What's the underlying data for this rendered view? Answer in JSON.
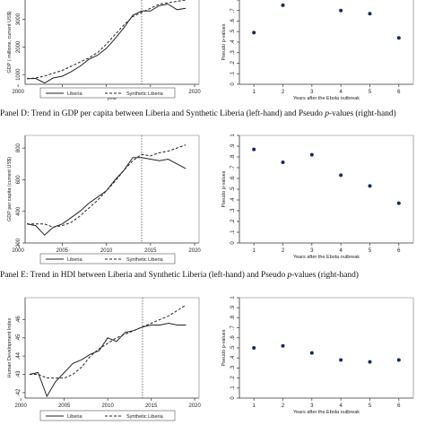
{
  "captions": [
    {
      "prefix": "Panel D: Trend in GDP per capita between Liberia and Synthetic Liberia (left-hand) and Pseudo ",
      "italic": "p",
      "suffix": "-values (right-hand)"
    },
    {
      "prefix": "Panel E: Trend in HDI between Liberia and Synthetic Liberia (left-hand) and Pseudo ",
      "italic": "p",
      "suffix": "-values (right-hand)"
    }
  ],
  "chart_data": [
    {
      "id": "gdp-trend",
      "type": "line",
      "title": "",
      "xlabel": "year",
      "ylabel": "GDP ( millions, current US$)",
      "xlim": [
        2000.8,
        2020.5
      ],
      "ylim": [
        650,
        3700
      ],
      "xticks": [
        2000,
        2005,
        2010,
        2015,
        2020
      ],
      "yticks": [
        1000,
        2000,
        3000
      ],
      "grid": false,
      "vline": 2014,
      "legend": {
        "position": "bottom",
        "entries": [
          "Liberia",
          "Synthetic Liberia"
        ]
      },
      "series": [
        {
          "name": "Liberia",
          "style": "solid",
          "x": [
            2001,
            2002,
            2003,
            2004,
            2005,
            2006,
            2007,
            2008,
            2009,
            2010,
            2011,
            2012,
            2013,
            2014,
            2015,
            2016,
            2017,
            2018,
            2019
          ],
          "y": [
            850,
            860,
            700,
            880,
            940,
            1100,
            1300,
            1550,
            1700,
            1950,
            2300,
            2700,
            3150,
            3300,
            3300,
            3500,
            3550,
            3350,
            3400
          ]
        },
        {
          "name": "Synthetic Liberia",
          "style": "dashed",
          "x": [
            2001,
            2002,
            2003,
            2004,
            2005,
            2006,
            2007,
            2008,
            2009,
            2010,
            2011,
            2012,
            2013,
            2014,
            2015,
            2016,
            2017,
            2018,
            2019
          ],
          "y": [
            850,
            880,
            950,
            1050,
            1150,
            1300,
            1450,
            1600,
            1800,
            2100,
            2450,
            2800,
            3100,
            3250,
            3400,
            3550,
            3600,
            3650,
            3700
          ]
        }
      ]
    },
    {
      "id": "gdp-pvalues",
      "type": "scatter",
      "title": "",
      "xlabel": "Years after the Ebola outbreak",
      "ylabel": "Pseudo p-values",
      "xlim": [
        0.5,
        6.5
      ],
      "ylim": [
        0,
        0.8
      ],
      "xticks": [
        1,
        2,
        3,
        4,
        5,
        6
      ],
      "yticks": [
        0,
        0.1,
        0.2,
        0.3,
        0.4,
        0.5,
        0.6,
        0.7,
        0.8
      ],
      "yticklabels": [
        "0",
        ".1",
        ".2",
        ".3",
        ".4",
        ".5",
        ".6",
        ".7",
        ".8"
      ],
      "grid": false,
      "series": [
        {
          "x": [
            1,
            2,
            4,
            5,
            6
          ],
          "y": [
            0.49,
            0.75,
            0.7,
            0.67,
            0.44
          ]
        }
      ]
    },
    {
      "id": "gdppc-trend",
      "type": "line",
      "title": "",
      "xlabel": "year",
      "ylabel": "GDP per capita (current US$)",
      "xlim": [
        2000.8,
        2020.5
      ],
      "ylim": [
        200,
        880
      ],
      "xticks": [
        2000,
        2005,
        2010,
        2015,
        2020
      ],
      "yticks": [
        200,
        400,
        600,
        800
      ],
      "grid": false,
      "vline": 2014,
      "legend": {
        "position": "bottom",
        "entries": [
          "Liberia",
          "Synthetic Liberia"
        ]
      },
      "series": [
        {
          "name": "Liberia",
          "style": "solid",
          "x": [
            2001,
            2002,
            2003,
            2004,
            2005,
            2006,
            2007,
            2008,
            2009,
            2010,
            2011,
            2012,
            2013,
            2014,
            2015,
            2016,
            2017,
            2018,
            2019
          ],
          "y": [
            320,
            310,
            250,
            300,
            320,
            360,
            400,
            450,
            490,
            530,
            600,
            660,
            740,
            740,
            730,
            720,
            730,
            700,
            670
          ]
        },
        {
          "name": "Synthetic Liberia",
          "style": "dashed",
          "x": [
            2001,
            2002,
            2003,
            2004,
            2005,
            2006,
            2007,
            2008,
            2009,
            2010,
            2011,
            2012,
            2013,
            2014,
            2015,
            2016,
            2017,
            2018,
            2019
          ],
          "y": [
            320,
            320,
            320,
            300,
            310,
            330,
            370,
            420,
            470,
            530,
            590,
            660,
            720,
            760,
            750,
            770,
            780,
            800,
            820
          ]
        }
      ]
    },
    {
      "id": "gdppc-pvalues",
      "type": "scatter",
      "title": "",
      "xlabel": "Years after the Ebola outbreak",
      "ylabel": "Pseudo p-values",
      "xlim": [
        0.5,
        6.5
      ],
      "ylim": [
        0,
        1
      ],
      "xticks": [
        1,
        2,
        3,
        4,
        5,
        6
      ],
      "yticks": [
        0,
        0.1,
        0.2,
        0.3,
        0.4,
        0.5,
        0.6,
        0.7,
        0.8,
        0.9,
        1
      ],
      "yticklabels": [
        "0",
        ".1",
        ".2",
        ".3",
        ".4",
        ".5",
        ".6",
        ".7",
        ".8",
        ".9",
        "1"
      ],
      "grid": false,
      "series": [
        {
          "x": [
            1,
            2,
            3,
            4,
            5,
            6
          ],
          "y": [
            0.87,
            0.75,
            0.82,
            0.63,
            0.53,
            0.37
          ]
        }
      ]
    },
    {
      "id": "hdi-trend",
      "type": "line",
      "title": "",
      "xlabel": "year",
      "ylabel": "Human Development Index",
      "xlim": [
        2000.5,
        2020.5
      ],
      "ylim": [
        0.417,
        0.472
      ],
      "xticks": [
        2000,
        2005,
        2010,
        2015,
        2020
      ],
      "yticks": [
        0.42,
        0.43,
        0.44,
        0.45,
        0.46
      ],
      "yticklabels": [
        ".42",
        ".43",
        ".44",
        ".45",
        ".46"
      ],
      "grid": false,
      "vline": 2014,
      "legend": {
        "position": "bottom",
        "entries": [
          "Liberia",
          "Synthetic Liberia"
        ]
      },
      "series": [
        {
          "name": "Liberia",
          "style": "solid",
          "x": [
            2001,
            2002,
            2003,
            2004,
            2005,
            2006,
            2007,
            2008,
            2009,
            2010,
            2011,
            2012,
            2013,
            2014,
            2015,
            2016,
            2017,
            2018,
            2019
          ],
          "y": [
            0.43,
            0.431,
            0.418,
            0.426,
            0.431,
            0.436,
            0.438,
            0.441,
            0.443,
            0.45,
            0.448,
            0.453,
            0.454,
            0.456,
            0.457,
            0.457,
            0.458,
            0.457,
            0.457
          ]
        },
        {
          "name": "Synthetic Liberia",
          "style": "dashed",
          "x": [
            2001,
            2002,
            2003,
            2004,
            2005,
            2006,
            2007,
            2008,
            2009,
            2010,
            2011,
            2012,
            2013,
            2014,
            2015,
            2016,
            2017,
            2018,
            2019
          ],
          "y": [
            0.43,
            0.43,
            0.428,
            0.428,
            0.428,
            0.43,
            0.434,
            0.44,
            0.444,
            0.447,
            0.45,
            0.452,
            0.454,
            0.456,
            0.458,
            0.46,
            0.462,
            0.465,
            0.468
          ]
        }
      ]
    },
    {
      "id": "hdi-pvalues",
      "type": "scatter",
      "title": "",
      "xlabel": "Years after the Ebola outbreak",
      "ylabel": "Pseudo p-values",
      "xlim": [
        0.5,
        6.5
      ],
      "ylim": [
        0,
        1
      ],
      "xticks": [
        1,
        2,
        3,
        4,
        5,
        6
      ],
      "yticks": [
        0,
        0.1,
        0.2,
        0.3,
        0.4,
        0.5,
        0.6,
        0.7,
        0.8,
        0.9,
        1
      ],
      "yticklabels": [
        "0",
        ".1",
        ".2",
        ".3",
        ".4",
        ".5",
        ".6",
        ".7",
        ".8",
        ".9",
        "1"
      ],
      "grid": false,
      "series": [
        {
          "x": [
            1,
            2,
            3,
            4,
            5,
            6
          ],
          "y": [
            0.5,
            0.52,
            0.45,
            0.38,
            0.36,
            0.38
          ]
        }
      ]
    }
  ]
}
